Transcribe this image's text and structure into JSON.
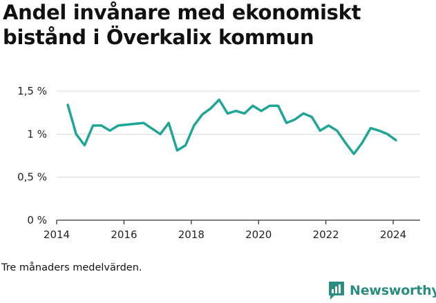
{
  "title": "Andel invånare med ekonomiskt bistånd i Överkalix kommun",
  "footnote": "Tre månaders medelvärden.",
  "brand": {
    "name": "Newsworthy",
    "color": "#2b8c81",
    "icon": "bar-chart-logo-icon"
  },
  "chart_data": {
    "type": "line",
    "title": "Andel invånare med ekonomiskt bistånd i Överkalix kommun",
    "xlabel": "",
    "ylabel": "",
    "ylim": [
      0,
      1.5
    ],
    "xlim": [
      2014,
      2024.8
    ],
    "y_ticks": [
      0,
      0.5,
      1,
      1.5
    ],
    "y_tick_labels": [
      "0 %",
      "0,5 %",
      "1 %",
      "1,5 %"
    ],
    "x_ticks": [
      2014,
      2016,
      2018,
      2020,
      2022,
      2024
    ],
    "x_tick_labels": [
      "2014",
      "2016",
      "2018",
      "2020",
      "2022",
      "2024"
    ],
    "grid": true,
    "line_color": "#1fa596",
    "series": [
      {
        "x": [
          2014.33,
          2014.58,
          2014.83,
          2015.08,
          2015.33,
          2015.58,
          2015.83,
          2016.58,
          2017.08,
          2017.33,
          2017.58,
          2017.83,
          2018.08,
          2018.33,
          2018.58,
          2018.83,
          2019.08,
          2019.33,
          2019.58,
          2019.83,
          2020.08,
          2020.33,
          2020.58,
          2020.83,
          2021.08,
          2021.33,
          2021.58,
          2021.83,
          2022.08,
          2022.33,
          2022.58,
          2022.83,
          2023.08,
          2023.33,
          2023.58,
          2023.83,
          2024.08
        ],
        "y": [
          1.34,
          1.0,
          0.87,
          1.1,
          1.1,
          1.04,
          1.1,
          1.13,
          1.0,
          1.13,
          0.81,
          0.87,
          1.1,
          1.23,
          1.3,
          1.4,
          1.24,
          1.27,
          1.24,
          1.33,
          1.27,
          1.33,
          1.33,
          1.13,
          1.17,
          1.24,
          1.2,
          1.04,
          1.1,
          1.04,
          0.9,
          0.77,
          0.9,
          1.07,
          1.04,
          1.0,
          0.93
        ]
      }
    ]
  }
}
